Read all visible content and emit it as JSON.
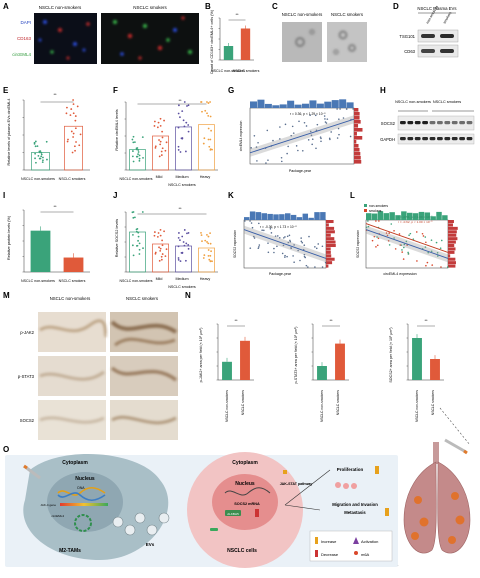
{
  "panels": {
    "A": {
      "letter": "A",
      "col1": "NSCLC non-smokers",
      "col2": "NSCLC smokers",
      "channels": [
        "DAPI",
        "CD163",
        "circEML4"
      ]
    },
    "B": {
      "letter": "B",
      "ylabel": "Count of CD163+ circEML4+ cells (%)",
      "sig": "**",
      "cats": [
        "NSCLC non-smokers",
        "NSCLC smokers"
      ]
    },
    "C": {
      "letter": "C",
      "col1": "NSCLC non-smokers",
      "col2": "NSCLC smokers"
    },
    "D": {
      "letter": "D",
      "title": "NSCLC Plasma EVs",
      "cols": [
        "non-smokers",
        "smokers"
      ],
      "rows": [
        "TSG101",
        "CD63"
      ]
    },
    "E": {
      "letter": "E",
      "ylabel": "Relative levels of plasma EVs circEML4",
      "sig": "**",
      "cats": [
        "NSCLC non-smokers",
        "NSCLC smokers"
      ]
    },
    "F": {
      "letter": "F",
      "ylabel": "Relative circEML4 levels",
      "sig": "**",
      "cats": [
        "NSCLC non-smokers",
        "Mild",
        "Medium",
        "Heavy"
      ],
      "group": "NSCLC smokers"
    },
    "G": {
      "letter": "G",
      "stat": "r = 0.36, p < 1.29 × 10⁻⁵",
      "xlabel": "Package-year",
      "ylabel": "circEML4 expression"
    },
    "H": {
      "letter": "H",
      "cols": [
        "NSCLC non-smokers",
        "NSCLC smokers"
      ],
      "rows": [
        "SOCS2",
        "GAPDH"
      ]
    },
    "I": {
      "letter": "I",
      "ylabel": "Relative protein levels (%)",
      "sig": "**",
      "cats": [
        "NSCLC non-smokers",
        "NSCLC smokers"
      ]
    },
    "J": {
      "letter": "J",
      "ylabel": "Relative SOCS2 levels",
      "sig": "**",
      "cats": [
        "NSCLC non-smokers",
        "Mild",
        "Medium",
        "Heavy"
      ],
      "group": "NSCLC smokers"
    },
    "K": {
      "letter": "K",
      "stat": "r = -0.36, p < 1.73 × 10⁻⁵",
      "xlabel": "Package-year",
      "ylabel": "SOCS2 expression"
    },
    "L": {
      "letter": "L",
      "legend": [
        "non-smokers",
        "smokers"
      ],
      "stat1": "r = -0.51, p < 1.00 × 10⁻⁵",
      "stat2": "r = -0.62, p < 1.00 × 10⁻⁵",
      "xlabel": "circEML4 expression",
      "ylabel": "SOCS2 expression"
    },
    "M": {
      "letter": "M",
      "cols": [
        "NSCLC non-smokers",
        "NSCLC smokers"
      ],
      "rows": [
        "p-JAK2",
        "p-STAT3",
        "SOCS2"
      ]
    },
    "N": {
      "letter": "N",
      "sig": "**",
      "cats": [
        "NSCLC non-smokers",
        "NSCLC smokers"
      ],
      "ylabels": [
        "p-JAK2+ area per field (× 10³ μm²)",
        "p-STAT3+ area per field (× 10³ μm²)",
        "SOCS2+ area per field (× 10³ μm²)"
      ]
    },
    "O": {
      "letter": "O",
      "cyto1": "Cytoplasm",
      "nucleus1": "Nucleus",
      "dna": "DNA",
      "jak": "JAK-4 gene",
      "mrna": "circEML4",
      "tams": "M2-TAMs",
      "evs": "EVs",
      "cyto2": "Cytoplasm",
      "nucleus2": "Nucleus",
      "socs": "SOCS2 mRNA",
      "alkbh5": "ALKBH5",
      "pathway": "JAK-STAT pathway",
      "prolif": "Proliferation",
      "migr": "Migration and Invasion",
      "meta": "Metastasis",
      "nsclc": "NSCLC cells",
      "leg_inc": "Increase",
      "leg_dec": "Decrease",
      "leg_act": "Activation",
      "leg_m6a": "m6A"
    }
  },
  "chart_data": [
    {
      "type": "bar",
      "panel": "B",
      "categories": [
        "NSCLC non-smokers",
        "NSCLC smokers"
      ],
      "values": [
        4,
        9
      ],
      "ylim": [
        0,
        12
      ]
    },
    {
      "type": "bar",
      "panel": "E",
      "categories": [
        "NSCLC non-smokers",
        "NSCLC smokers"
      ],
      "values": [
        100,
        250
      ],
      "ylim": [
        0,
        400
      ]
    },
    {
      "type": "bar",
      "panel": "F",
      "categories": [
        "NSCLC non-smokers",
        "Mild",
        "Medium",
        "Heavy"
      ],
      "values": [
        90,
        150,
        190,
        200
      ],
      "ylim": [
        0,
        300
      ]
    },
    {
      "type": "scatter",
      "panel": "G",
      "xlabel": "Package-year",
      "ylabel": "circEML4 expression",
      "xlim": [
        0,
        100
      ],
      "ylim": [
        -60,
        60
      ]
    },
    {
      "type": "bar",
      "panel": "I",
      "categories": [
        "NSCLC non-smokers",
        "NSCLC smokers"
      ],
      "values": [
        100,
        35
      ],
      "ylim": [
        0,
        150
      ]
    },
    {
      "type": "bar",
      "panel": "J",
      "categories": [
        "NSCLC non-smokers",
        "Mild",
        "Medium",
        "Heavy"
      ],
      "values": [
        100,
        70,
        65,
        60
      ],
      "ylim": [
        0,
        150
      ]
    },
    {
      "type": "scatter",
      "panel": "K",
      "xlabel": "Package-year",
      "ylabel": "SOCS2 expression",
      "xlim": [
        0,
        100
      ]
    },
    {
      "type": "scatter",
      "panel": "L",
      "xlabel": "circEML4 expression",
      "ylabel": "SOCS2 expression",
      "series": [
        {
          "name": "non-smokers"
        },
        {
          "name": "smokers"
        }
      ]
    },
    {
      "type": "bar",
      "panel": "N1",
      "categories": [
        "NSCLC non-smokers",
        "NSCLC smokers"
      ],
      "values": [
        13,
        28
      ],
      "ylim": [
        0,
        40
      ]
    },
    {
      "type": "bar",
      "panel": "N2",
      "categories": [
        "NSCLC non-smokers",
        "NSCLC smokers"
      ],
      "values": [
        10,
        26
      ],
      "ylim": [
        0,
        40
      ]
    },
    {
      "type": "bar",
      "panel": "N3",
      "categories": [
        "NSCLC non-smokers",
        "NSCLC smokers"
      ],
      "values": [
        30,
        15
      ],
      "ylim": [
        0,
        40
      ]
    }
  ]
}
